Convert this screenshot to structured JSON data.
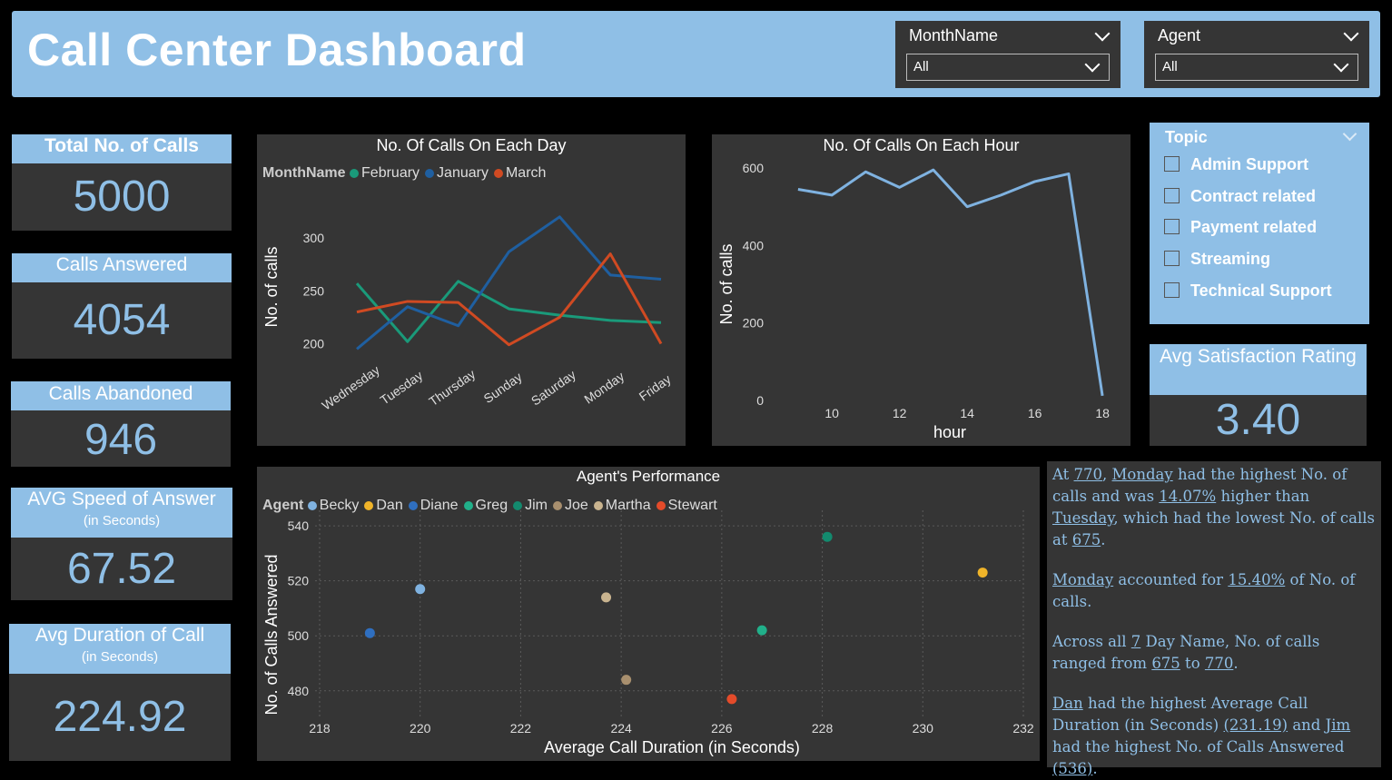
{
  "title": "Call Center Dashboard",
  "slicers": [
    {
      "label": "MonthName",
      "value": "All"
    },
    {
      "label": "Agent",
      "value": "All"
    }
  ],
  "kpis": {
    "total_calls": {
      "label": "Total No. of Calls",
      "value": "5000"
    },
    "calls_answered": {
      "label": "Calls Answered",
      "value": "4054"
    },
    "calls_abandoned": {
      "label": "Calls Abandoned",
      "value": "946"
    },
    "avg_speed": {
      "label": "AVG Speed of Answer",
      "sub": "(in Seconds)",
      "value": "67.52"
    },
    "avg_duration": {
      "label": "Avg Duration of Call",
      "sub": "(in Seconds)",
      "value": "224.92"
    },
    "avg_satisfaction": {
      "label": "Avg Satisfaction Rating",
      "value": "3.40"
    }
  },
  "topic": {
    "title": "Topic",
    "items": [
      "Admin Support",
      "Contract related",
      "Payment related",
      "Streaming",
      "Technical Support"
    ]
  },
  "colors": {
    "accent": "#8fbfe6",
    "panel": "#353535",
    "february": "#1a9a7a",
    "january": "#1f5fa0",
    "march": "#d04a22",
    "becky": "#7fb2e0",
    "dan": "#f0b429",
    "diane": "#2f6fc0",
    "greg": "#21b08a",
    "jim": "#138a6e",
    "joe": "#a88f6e",
    "martha": "#c9b48f",
    "stewart": "#e44b2a"
  },
  "chart_data": [
    {
      "type": "line",
      "title": "No. Of Calls On Each Day",
      "legend_title": "MonthName",
      "xlabel": "",
      "ylabel": "No. of calls",
      "categories": [
        "Wednesday",
        "Tuesday",
        "Thursday",
        "Sunday",
        "Saturday",
        "Monday",
        "Friday"
      ],
      "yticks": [
        200,
        250,
        300
      ],
      "ylim": [
        185,
        325
      ],
      "series": [
        {
          "name": "February",
          "values": [
            257,
            202,
            259,
            233,
            227,
            222,
            220
          ]
        },
        {
          "name": "January",
          "values": [
            195,
            235,
            217,
            287,
            320,
            265,
            261
          ]
        },
        {
          "name": "March",
          "values": [
            230,
            240,
            239,
            199,
            225,
            285,
            200
          ]
        }
      ]
    },
    {
      "type": "line",
      "title": "No. Of Calls On Each Hour",
      "xlabel": "hour",
      "ylabel": "No. of calls",
      "x": [
        9,
        10,
        11,
        12,
        13,
        14,
        15,
        16,
        17,
        18
      ],
      "xticks": [
        10,
        12,
        14,
        16,
        18
      ],
      "yticks": [
        0,
        200,
        400,
        600
      ],
      "xlim": [
        8.6,
        18.4
      ],
      "ylim": [
        0,
        600
      ],
      "series": [
        {
          "name": "No. of calls",
          "values": [
            545,
            530,
            590,
            550,
            595,
            500,
            530,
            565,
            585,
            12
          ]
        }
      ]
    },
    {
      "type": "scatter",
      "title": "Agent's Performance",
      "legend_title": "Agent",
      "xlabel": "Average Call Duration (in Seconds)",
      "ylabel": "No. of Calls Answered",
      "xticks": [
        218,
        220,
        222,
        224,
        226,
        228,
        230,
        232
      ],
      "yticks": [
        480,
        500,
        520,
        540
      ],
      "xlim": [
        218,
        232
      ],
      "ylim": [
        473,
        543
      ],
      "series": [
        {
          "name": "Becky",
          "x": 220.0,
          "y": 517
        },
        {
          "name": "Dan",
          "x": 231.19,
          "y": 523
        },
        {
          "name": "Diane",
          "x": 219.0,
          "y": 501
        },
        {
          "name": "Greg",
          "x": 226.8,
          "y": 502
        },
        {
          "name": "Jim",
          "x": 228.1,
          "y": 536
        },
        {
          "name": "Joe",
          "x": 224.1,
          "y": 484
        },
        {
          "name": "Martha",
          "x": 223.7,
          "y": 514
        },
        {
          "name": "Stewart",
          "x": 226.2,
          "y": 477
        }
      ]
    }
  ],
  "narrative": {
    "p1": {
      "t1": "At ",
      "v1": "770",
      "t2": ", ",
      "v2": "Monday",
      "t3": " had the highest No. of calls and was ",
      "v3": "14.07%",
      "t4": " higher than ",
      "v4": "Tuesday",
      "t5": ", which had the lowest No. of calls at ",
      "v5": "675",
      "t6": "."
    },
    "p2": {
      "v1": "Monday",
      "t1": " accounted for ",
      "v2": "15.40%",
      "t2": " of No. of calls."
    },
    "p3": {
      "t1": "Across all ",
      "v1": "7",
      "t2": " Day Name, No. of calls ranged from ",
      "v2": "675",
      "t3": " to ",
      "v3": "770",
      "t4": "."
    },
    "p4": {
      "v1": "Dan",
      "t1": " had the highest  Average Call Duration (in Seconds) ",
      "v2": "(231.19)",
      "t2": " and ",
      "v3": "Jim",
      "t3": " had the highest No. of Calls Answered ",
      "v4": "(536)",
      "t4": "."
    }
  }
}
